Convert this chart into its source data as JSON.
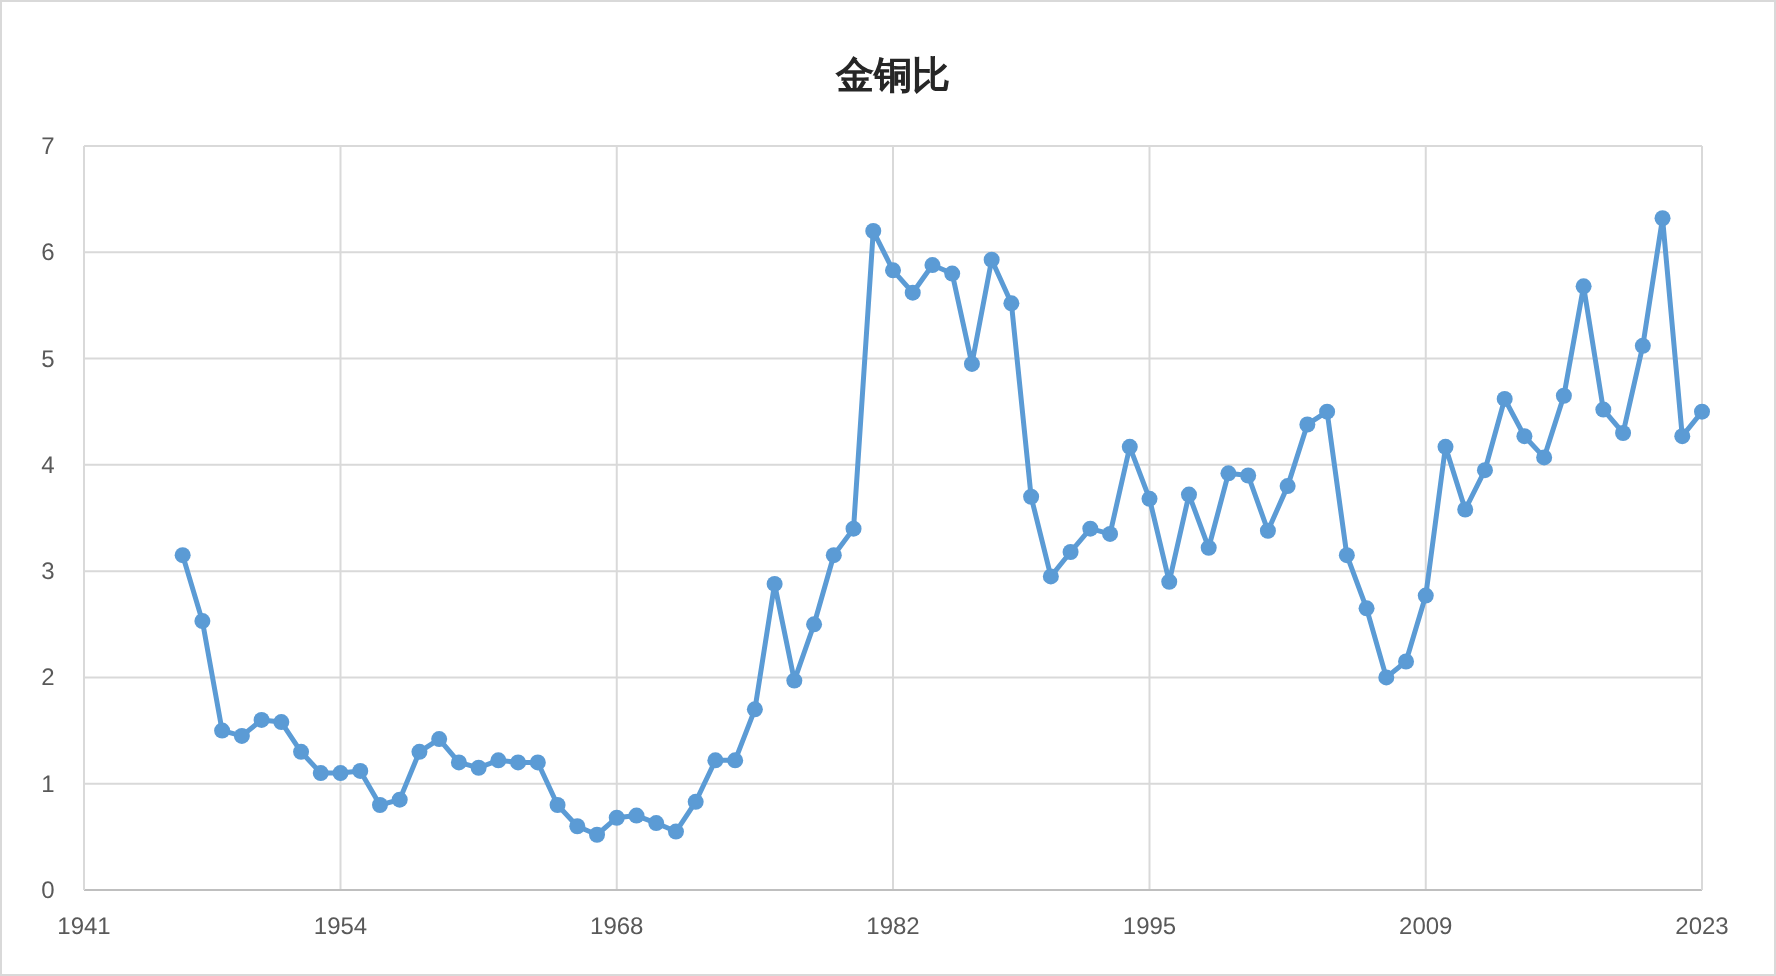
{
  "chart_data": {
    "type": "line",
    "title": "金铜比",
    "x": [
      1946,
      1947,
      1948,
      1949,
      1950,
      1951,
      1952,
      1953,
      1954,
      1955,
      1956,
      1957,
      1958,
      1959,
      1960,
      1961,
      1962,
      1963,
      1964,
      1965,
      1966,
      1967,
      1968,
      1969,
      1970,
      1971,
      1972,
      1973,
      1974,
      1975,
      1976,
      1977,
      1978,
      1979,
      1980,
      1981,
      1982,
      1983,
      1984,
      1985,
      1986,
      1987,
      1988,
      1989,
      1990,
      1991,
      1992,
      1993,
      1994,
      1995,
      1996,
      1997,
      1998,
      1999,
      2000,
      2001,
      2002,
      2003,
      2004,
      2005,
      2006,
      2007,
      2008,
      2009,
      2010,
      2011,
      2012,
      2013,
      2014,
      2015,
      2016,
      2017,
      2018,
      2019,
      2020,
      2021,
      2022,
      2023
    ],
    "series": [
      {
        "color": "#5b9bd5",
        "values": [
          3.15,
          2.53,
          1.5,
          1.45,
          1.6,
          1.58,
          1.3,
          1.1,
          1.1,
          1.12,
          0.8,
          0.85,
          1.3,
          1.42,
          1.2,
          1.15,
          1.22,
          1.2,
          1.2,
          0.8,
          0.6,
          0.52,
          0.68,
          0.7,
          0.63,
          0.55,
          0.83,
          1.22,
          1.22,
          1.7,
          2.88,
          1.97,
          2.5,
          3.15,
          3.4,
          6.2,
          5.83,
          5.62,
          5.88,
          5.8,
          4.95,
          5.93,
          5.52,
          3.7,
          2.95,
          3.18,
          3.4,
          3.35,
          4.17,
          3.68,
          2.9,
          3.72,
          3.22,
          3.92,
          3.9,
          3.38,
          3.8,
          4.38,
          4.5,
          3.15,
          2.65,
          2.0,
          2.15,
          2.77,
          4.17,
          3.58,
          3.95,
          4.62,
          4.27,
          4.07,
          4.65,
          5.68,
          4.52,
          4.3,
          5.12,
          6.32,
          4.27,
          4.5
        ]
      }
    ],
    "xlim": [
      1941,
      2023
    ],
    "xticks": [
      1941,
      1954,
      1968,
      1982,
      1995,
      2009,
      2023
    ],
    "ylim": [
      0,
      7
    ],
    "yticks": [
      0,
      1,
      2,
      3,
      4,
      5,
      6,
      7
    ],
    "grid": true,
    "marker": "circle",
    "line_style": "solid"
  }
}
